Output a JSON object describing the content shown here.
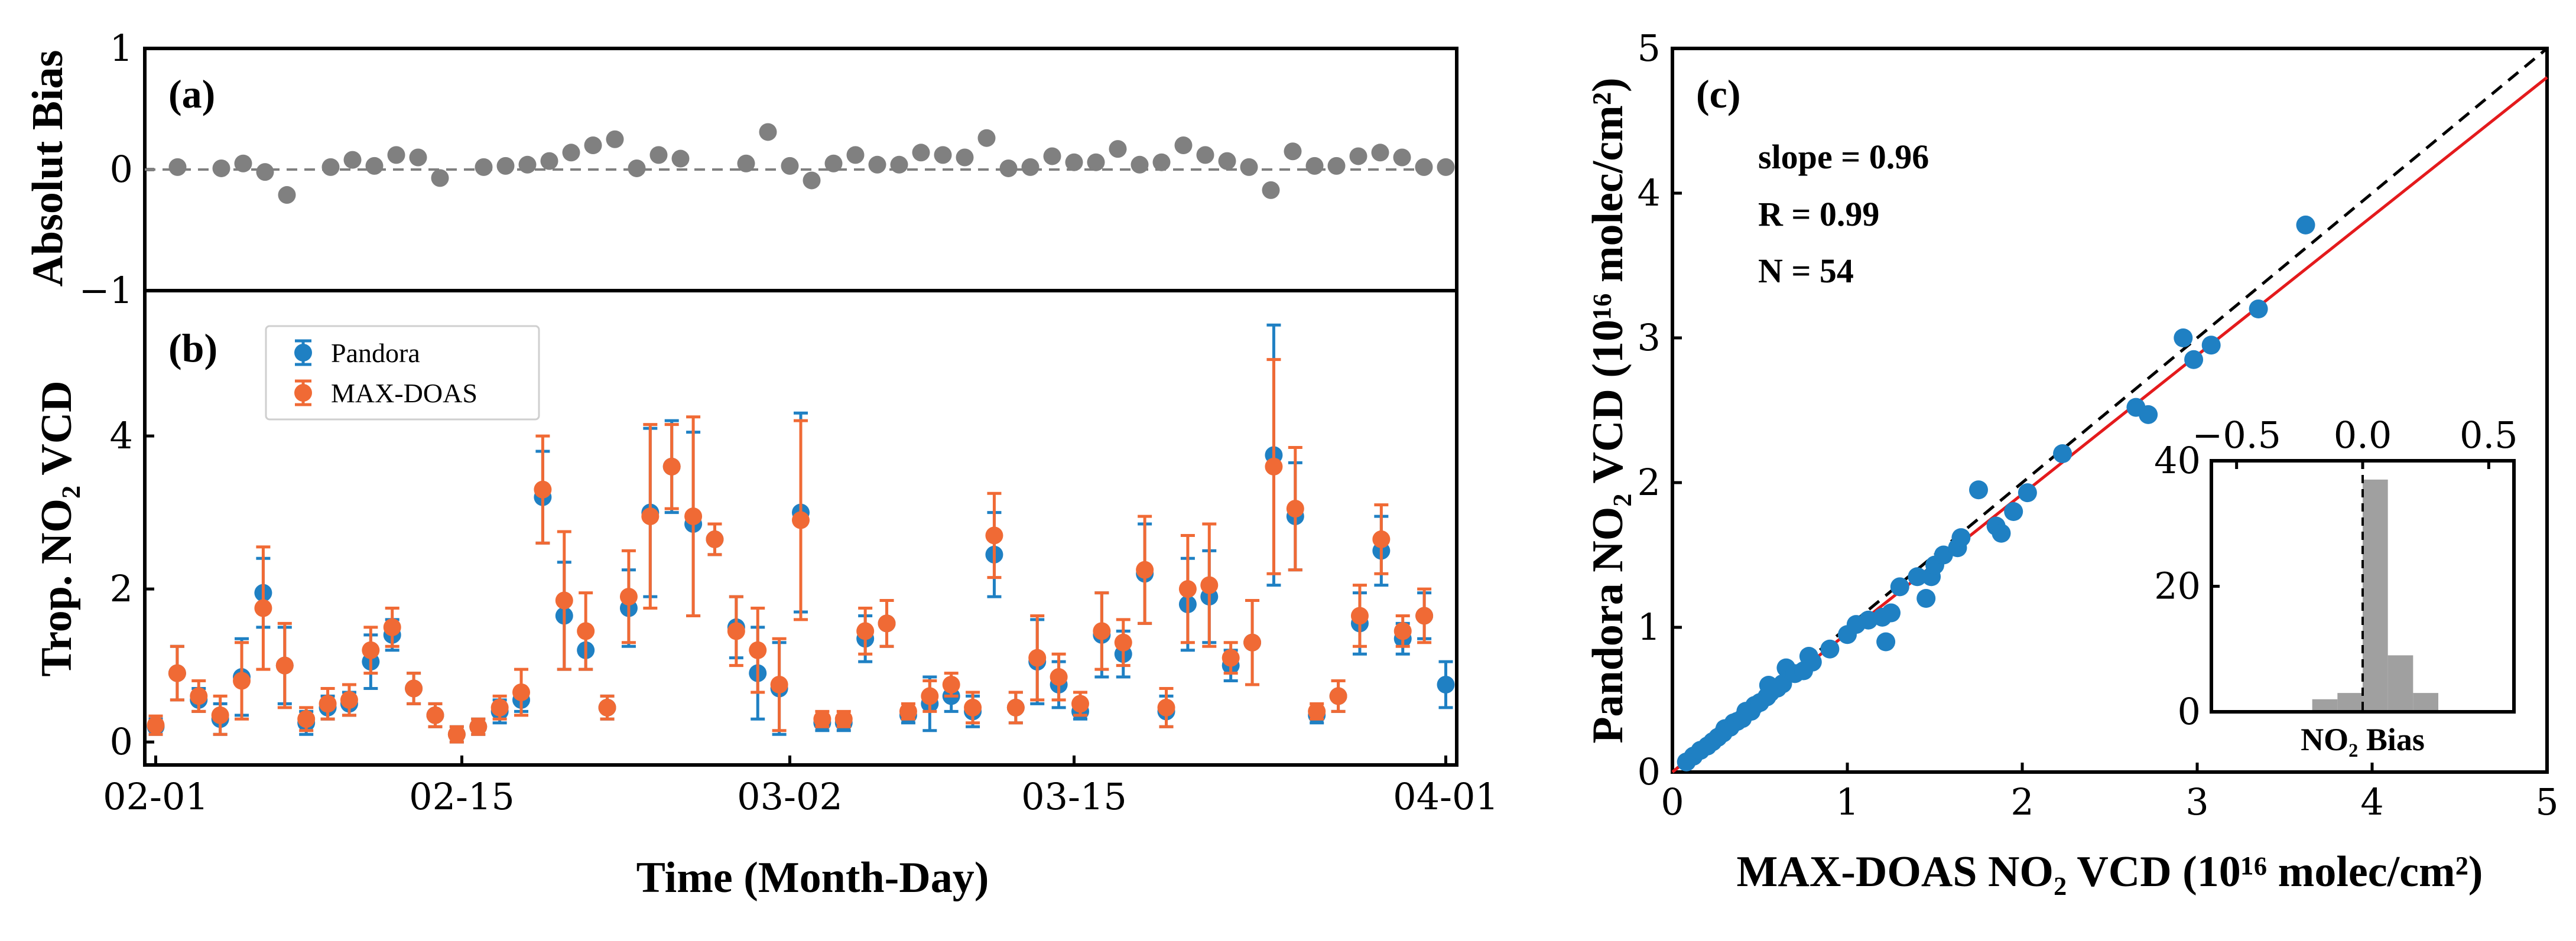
{
  "chart_data": [
    {
      "id": "a",
      "type": "scatter",
      "panel_label": "(a)",
      "ylabel": "Absolut Bias",
      "ylim": [
        -1,
        1
      ],
      "yticks": [
        -1,
        0,
        1
      ],
      "reference_line": 0,
      "color": "#808080",
      "x": [
        1,
        3,
        4,
        5,
        6,
        8,
        9,
        10,
        11,
        12,
        13,
        15,
        16,
        17,
        18,
        19,
        20,
        21,
        22,
        23,
        24,
        27,
        28,
        29,
        30,
        31,
        32,
        33,
        34,
        35,
        36,
        37,
        38,
        39,
        40,
        41,
        42,
        43,
        44,
        45,
        46,
        47,
        48,
        49,
        50,
        51,
        52,
        53,
        54,
        55,
        56,
        57,
        58,
        59
      ],
      "values": [
        0.02,
        0.01,
        0.05,
        -0.02,
        -0.21,
        0.02,
        0.08,
        0.03,
        0.12,
        0.1,
        -0.07,
        0.02,
        0.03,
        0.04,
        0.07,
        0.14,
        0.2,
        0.25,
        0.01,
        0.12,
        0.09,
        0.05,
        0.31,
        0.03,
        -0.09,
        0.05,
        0.12,
        0.04,
        0.04,
        0.14,
        0.12,
        0.1,
        0.26,
        0.01,
        0.02,
        0.11,
        0.06,
        0.06,
        0.17,
        0.04,
        0.06,
        0.2,
        0.12,
        0.07,
        0.02,
        -0.17,
        0.15,
        0.03,
        0.03,
        0.11,
        0.14,
        0.1,
        0.02,
        0.02
      ]
    },
    {
      "id": "b",
      "type": "scatter",
      "panel_label": "(b)",
      "ylabel": "Trop. NO₂ VCD",
      "xlabel": "Time (Month-Day)",
      "ylim": [
        -0.3,
        5.9
      ],
      "yticks": [
        0,
        2,
        4
      ],
      "xlim": [
        -0.5,
        59.5
      ],
      "xticks": [
        {
          "x": 0,
          "label": "02-01"
        },
        {
          "x": 14,
          "label": "02-15"
        },
        {
          "x": 29,
          "label": "03-02"
        },
        {
          "x": 42,
          "label": "03-15"
        },
        {
          "x": 59,
          "label": "04-01"
        }
      ],
      "legend": [
        "Pandora",
        "MAX-DOAS"
      ],
      "legend_position": "upper-left",
      "series": [
        {
          "name": "Pandora",
          "color": "#1F80C3",
          "points": [
            [
              1,
              0.2,
              0.1
            ],
            [
              2,
              0.9,
              0.35
            ],
            [
              3,
              0.55,
              0.15
            ],
            [
              4,
              0.3,
              0.2
            ],
            [
              5,
              0.85,
              0.5
            ],
            [
              6,
              1.95,
              0.45
            ],
            [
              7,
              1.0,
              0.5
            ],
            [
              8,
              0.25,
              0.15
            ],
            [
              9,
              0.45,
              0.15
            ],
            [
              10,
              0.5,
              0.15
            ],
            [
              11,
              1.05,
              0.35
            ],
            [
              12,
              1.4,
              0.2
            ],
            [
              13,
              0.7,
              0.2
            ],
            [
              14,
              0.35,
              0.15
            ],
            [
              15,
              0.1,
              0.1
            ],
            [
              16,
              0.2,
              0.1
            ],
            [
              17,
              0.4,
              0.15
            ],
            [
              18,
              0.55,
              0.15
            ],
            [
              19,
              3.2,
              0.6
            ],
            [
              20,
              1.65,
              0.7
            ],
            [
              21,
              1.2,
              0.25
            ],
            [
              22,
              0.45,
              0.15
            ],
            [
              23,
              1.75,
              0.5
            ],
            [
              24,
              3.0,
              1.1
            ],
            [
              25,
              3.6,
              0.6
            ],
            [
              26,
              2.85,
              1.2
            ],
            [
              27,
              2.65,
              0.2
            ],
            [
              28,
              1.5,
              0.4
            ],
            [
              29,
              0.9,
              0.6
            ],
            [
              30,
              0.7,
              0.6
            ],
            [
              31,
              3.0,
              1.3
            ],
            [
              32,
              0.25,
              0.1
            ],
            [
              33,
              0.25,
              0.1
            ],
            [
              34,
              1.35,
              0.3
            ],
            [
              35,
              1.55,
              0.3
            ],
            [
              36,
              0.35,
              0.1
            ],
            [
              37,
              0.5,
              0.35
            ],
            [
              38,
              0.6,
              0.2
            ],
            [
              39,
              0.4,
              0.2
            ],
            [
              40,
              2.45,
              0.55
            ],
            [
              41,
              0.45,
              0.2
            ],
            [
              42,
              1.05,
              0.55
            ],
            [
              43,
              0.75,
              0.3
            ],
            [
              44,
              0.4,
              0.1
            ],
            [
              45,
              1.4,
              0.55
            ],
            [
              46,
              1.15,
              0.3
            ],
            [
              47,
              2.2,
              0.65
            ],
            [
              48,
              0.4,
              0.2
            ],
            [
              49,
              1.8,
              0.6
            ],
            [
              50,
              1.9,
              0.6
            ],
            [
              51,
              1.0,
              0.2
            ],
            [
              52,
              1.3,
              0.55
            ],
            [
              53,
              3.75,
              1.7
            ],
            [
              54,
              2.95,
              0.7
            ],
            [
              55,
              0.35,
              0.1
            ],
            [
              56,
              0.6,
              0.2
            ],
            [
              57,
              1.55,
              0.4
            ],
            [
              58,
              2.5,
              0.45
            ],
            [
              59,
              1.35,
              0.2
            ],
            [
              60,
              1.65,
              0.3
            ],
            [
              61,
              0.75,
              0.3
            ]
          ]
        },
        {
          "name": "MAX-DOAS",
          "color": "#F06A35",
          "points": [
            [
              1,
              0.22,
              0.12
            ],
            [
              2,
              0.9,
              0.35
            ],
            [
              3,
              0.6,
              0.2
            ],
            [
              4,
              0.35,
              0.25
            ],
            [
              5,
              0.8,
              0.5
            ],
            [
              6,
              1.75,
              0.8
            ],
            [
              7,
              1.0,
              0.55
            ],
            [
              8,
              0.3,
              0.15
            ],
            [
              9,
              0.5,
              0.2
            ],
            [
              10,
              0.55,
              0.2
            ],
            [
              11,
              1.2,
              0.3
            ],
            [
              12,
              1.5,
              0.25
            ],
            [
              13,
              0.7,
              0.2
            ],
            [
              14,
              0.35,
              0.15
            ],
            [
              15,
              0.1,
              0.1
            ],
            [
              16,
              0.2,
              0.1
            ],
            [
              17,
              0.45,
              0.15
            ],
            [
              18,
              0.65,
              0.3
            ],
            [
              19,
              3.3,
              0.7
            ],
            [
              20,
              1.85,
              0.9
            ],
            [
              21,
              1.45,
              0.5
            ],
            [
              22,
              0.45,
              0.15
            ],
            [
              23,
              1.9,
              0.6
            ],
            [
              24,
              2.95,
              1.2
            ],
            [
              25,
              3.6,
              0.55
            ],
            [
              26,
              2.95,
              1.3
            ],
            [
              27,
              2.65,
              0.2
            ],
            [
              28,
              1.45,
              0.45
            ],
            [
              29,
              1.2,
              0.55
            ],
            [
              30,
              0.75,
              0.6
            ],
            [
              31,
              2.9,
              1.3
            ],
            [
              32,
              0.3,
              0.1
            ],
            [
              33,
              0.3,
              0.1
            ],
            [
              34,
              1.45,
              0.3
            ],
            [
              35,
              1.55,
              0.3
            ],
            [
              36,
              0.4,
              0.1
            ],
            [
              37,
              0.6,
              0.2
            ],
            [
              38,
              0.75,
              0.15
            ],
            [
              39,
              0.45,
              0.2
            ],
            [
              40,
              2.7,
              0.55
            ],
            [
              41,
              0.45,
              0.2
            ],
            [
              42,
              1.1,
              0.55
            ],
            [
              43,
              0.85,
              0.3
            ],
            [
              44,
              0.5,
              0.15
            ],
            [
              45,
              1.45,
              0.5
            ],
            [
              46,
              1.3,
              0.3
            ],
            [
              47,
              2.25,
              0.7
            ],
            [
              48,
              0.45,
              0.25
            ],
            [
              49,
              2.0,
              0.7
            ],
            [
              50,
              2.05,
              0.8
            ],
            [
              51,
              1.1,
              0.2
            ],
            [
              52,
              1.3,
              0.55
            ],
            [
              53,
              3.6,
              1.4
            ],
            [
              54,
              3.05,
              0.8
            ],
            [
              55,
              0.4,
              0.1
            ],
            [
              56,
              0.6,
              0.2
            ],
            [
              57,
              1.65,
              0.4
            ],
            [
              58,
              2.65,
              0.45
            ],
            [
              59,
              1.45,
              0.2
            ],
            [
              60,
              1.65,
              0.35
            ]
          ]
        }
      ]
    },
    {
      "id": "c",
      "type": "scatter",
      "panel_label": "(c)",
      "xlabel": "MAX-DOAS NO₂ VCD (10¹⁶ molec/cm²)",
      "ylabel": "Pandora NO₂ VCD (10¹⁶ molec/cm²)",
      "xlim": [
        0,
        5
      ],
      "ylim": [
        0,
        5
      ],
      "xticks": [
        0,
        1,
        2,
        3,
        4,
        5
      ],
      "yticks": [
        0,
        1,
        2,
        3,
        4,
        5
      ],
      "stats": {
        "slope": "slope = 0.96",
        "r": "R = 0.99",
        "n": "N = 54"
      },
      "fit_slope": 0.96,
      "fit_color": "#E41A1C",
      "one_to_one": true,
      "color": "#1F80C3",
      "points": [
        [
          0.08,
          0.07
        ],
        [
          0.12,
          0.11
        ],
        [
          0.16,
          0.15
        ],
        [
          0.2,
          0.18
        ],
        [
          0.23,
          0.21
        ],
        [
          0.26,
          0.24
        ],
        [
          0.29,
          0.27
        ],
        [
          0.3,
          0.3
        ],
        [
          0.33,
          0.31
        ],
        [
          0.35,
          0.34
        ],
        [
          0.37,
          0.35
        ],
        [
          0.4,
          0.37
        ],
        [
          0.42,
          0.42
        ],
        [
          0.45,
          0.42
        ],
        [
          0.47,
          0.46
        ],
        [
          0.5,
          0.48
        ],
        [
          0.54,
          0.52
        ],
        [
          0.56,
          0.55
        ],
        [
          0.6,
          0.58
        ],
        [
          0.63,
          0.61
        ],
        [
          0.65,
          0.72
        ],
        [
          0.7,
          0.68
        ],
        [
          0.75,
          0.7
        ],
        [
          0.78,
          0.8
        ],
        [
          0.8,
          0.76
        ],
        [
          1.12,
          1.05
        ],
        [
          1.2,
          1.07
        ],
        [
          1.22,
          0.9
        ],
        [
          1.25,
          1.1
        ],
        [
          1.3,
          1.28
        ],
        [
          1.4,
          1.35
        ],
        [
          1.45,
          1.2
        ],
        [
          1.48,
          1.35
        ],
        [
          1.5,
          1.43
        ],
        [
          1.55,
          1.5
        ],
        [
          1.63,
          1.55
        ],
        [
          1.65,
          1.62
        ],
        [
          1.75,
          1.95
        ],
        [
          1.85,
          1.7
        ],
        [
          1.88,
          1.65
        ],
        [
          1.95,
          1.8
        ],
        [
          2.03,
          1.93
        ],
        [
          2.23,
          2.2
        ],
        [
          2.65,
          2.52
        ],
        [
          2.72,
          2.47
        ],
        [
          2.92,
          3.0
        ],
        [
          2.98,
          2.85
        ],
        [
          3.08,
          2.95
        ],
        [
          3.35,
          3.2
        ],
        [
          3.62,
          3.78
        ],
        [
          1.0,
          0.95
        ],
        [
          0.55,
          0.6
        ],
        [
          0.9,
          0.85
        ],
        [
          1.05,
          1.02
        ]
      ]
    },
    {
      "id": "c-inset",
      "type": "bar",
      "xlabel": "NO₂ Bias",
      "xlim": [
        -0.6,
        0.6
      ],
      "xticks": [
        -0.5,
        0.0,
        0.5
      ],
      "ylim": [
        0,
        40
      ],
      "yticks": [
        0,
        20,
        40
      ],
      "bin_edges": [
        -0.3,
        -0.2,
        -0.1,
        0.0,
        0.1,
        0.2,
        0.3
      ],
      "values": [
        0,
        2,
        3,
        37,
        9,
        3
      ],
      "color": "#A0A0A0",
      "reference_line": 0.0
    }
  ]
}
